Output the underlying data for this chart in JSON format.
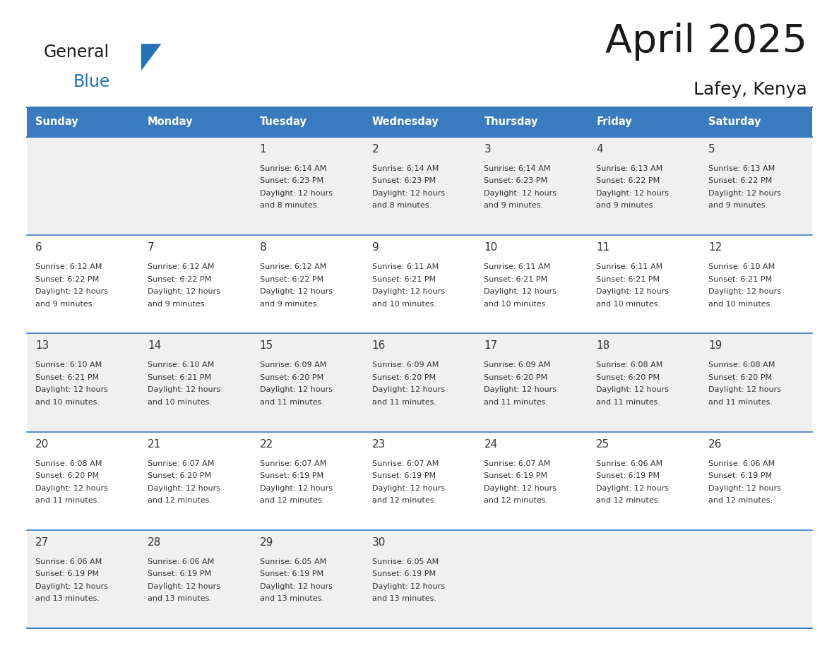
{
  "title": "April 2025",
  "subtitle": "Lafey, Kenya",
  "days_of_week": [
    "Sunday",
    "Monday",
    "Tuesday",
    "Wednesday",
    "Thursday",
    "Friday",
    "Saturday"
  ],
  "header_bg_color": "#3A7BBF",
  "header_text_color": "#FFFFFF",
  "cell_bg_white": "#FFFFFF",
  "cell_bg_gray": "#F0F0F0",
  "cell_border_color": "#3A7BBF",
  "row_line_color": "#3A7BBF",
  "title_color": "#1a1a1a",
  "subtitle_color": "#1a1a1a",
  "text_color": "#333333",
  "logo_general_color": "#1a1a1a",
  "logo_blue_color": "#2472B8",
  "logo_triangle_color": "#2472B8",
  "calendar_data": [
    [
      null,
      null,
      {
        "day": 1,
        "sunrise": "6:14 AM",
        "sunset": "6:23 PM",
        "daylight": "12 hours\nand 8 minutes."
      },
      {
        "day": 2,
        "sunrise": "6:14 AM",
        "sunset": "6:23 PM",
        "daylight": "12 hours\nand 8 minutes."
      },
      {
        "day": 3,
        "sunrise": "6:14 AM",
        "sunset": "6:23 PM",
        "daylight": "12 hours\nand 9 minutes."
      },
      {
        "day": 4,
        "sunrise": "6:13 AM",
        "sunset": "6:22 PM",
        "daylight": "12 hours\nand 9 minutes."
      },
      {
        "day": 5,
        "sunrise": "6:13 AM",
        "sunset": "6:22 PM",
        "daylight": "12 hours\nand 9 minutes."
      }
    ],
    [
      {
        "day": 6,
        "sunrise": "6:12 AM",
        "sunset": "6:22 PM",
        "daylight": "12 hours\nand 9 minutes."
      },
      {
        "day": 7,
        "sunrise": "6:12 AM",
        "sunset": "6:22 PM",
        "daylight": "12 hours\nand 9 minutes."
      },
      {
        "day": 8,
        "sunrise": "6:12 AM",
        "sunset": "6:22 PM",
        "daylight": "12 hours\nand 9 minutes."
      },
      {
        "day": 9,
        "sunrise": "6:11 AM",
        "sunset": "6:21 PM",
        "daylight": "12 hours\nand 10 minutes."
      },
      {
        "day": 10,
        "sunrise": "6:11 AM",
        "sunset": "6:21 PM",
        "daylight": "12 hours\nand 10 minutes."
      },
      {
        "day": 11,
        "sunrise": "6:11 AM",
        "sunset": "6:21 PM",
        "daylight": "12 hours\nand 10 minutes."
      },
      {
        "day": 12,
        "sunrise": "6:10 AM",
        "sunset": "6:21 PM",
        "daylight": "12 hours\nand 10 minutes."
      }
    ],
    [
      {
        "day": 13,
        "sunrise": "6:10 AM",
        "sunset": "6:21 PM",
        "daylight": "12 hours\nand 10 minutes."
      },
      {
        "day": 14,
        "sunrise": "6:10 AM",
        "sunset": "6:21 PM",
        "daylight": "12 hours\nand 10 minutes."
      },
      {
        "day": 15,
        "sunrise": "6:09 AM",
        "sunset": "6:20 PM",
        "daylight": "12 hours\nand 11 minutes."
      },
      {
        "day": 16,
        "sunrise": "6:09 AM",
        "sunset": "6:20 PM",
        "daylight": "12 hours\nand 11 minutes."
      },
      {
        "day": 17,
        "sunrise": "6:09 AM",
        "sunset": "6:20 PM",
        "daylight": "12 hours\nand 11 minutes."
      },
      {
        "day": 18,
        "sunrise": "6:08 AM",
        "sunset": "6:20 PM",
        "daylight": "12 hours\nand 11 minutes."
      },
      {
        "day": 19,
        "sunrise": "6:08 AM",
        "sunset": "6:20 PM",
        "daylight": "12 hours\nand 11 minutes."
      }
    ],
    [
      {
        "day": 20,
        "sunrise": "6:08 AM",
        "sunset": "6:20 PM",
        "daylight": "12 hours\nand 11 minutes."
      },
      {
        "day": 21,
        "sunrise": "6:07 AM",
        "sunset": "6:20 PM",
        "daylight": "12 hours\nand 12 minutes."
      },
      {
        "day": 22,
        "sunrise": "6:07 AM",
        "sunset": "6:19 PM",
        "daylight": "12 hours\nand 12 minutes."
      },
      {
        "day": 23,
        "sunrise": "6:07 AM",
        "sunset": "6:19 PM",
        "daylight": "12 hours\nand 12 minutes."
      },
      {
        "day": 24,
        "sunrise": "6:07 AM",
        "sunset": "6:19 PM",
        "daylight": "12 hours\nand 12 minutes."
      },
      {
        "day": 25,
        "sunrise": "6:06 AM",
        "sunset": "6:19 PM",
        "daylight": "12 hours\nand 12 minutes."
      },
      {
        "day": 26,
        "sunrise": "6:06 AM",
        "sunset": "6:19 PM",
        "daylight": "12 hours\nand 12 minutes."
      }
    ],
    [
      {
        "day": 27,
        "sunrise": "6:06 AM",
        "sunset": "6:19 PM",
        "daylight": "12 hours\nand 13 minutes."
      },
      {
        "day": 28,
        "sunrise": "6:06 AM",
        "sunset": "6:19 PM",
        "daylight": "12 hours\nand 13 minutes."
      },
      {
        "day": 29,
        "sunrise": "6:05 AM",
        "sunset": "6:19 PM",
        "daylight": "12 hours\nand 13 minutes."
      },
      {
        "day": 30,
        "sunrise": "6:05 AM",
        "sunset": "6:19 PM",
        "daylight": "12 hours\nand 13 minutes."
      },
      null,
      null,
      null
    ]
  ]
}
